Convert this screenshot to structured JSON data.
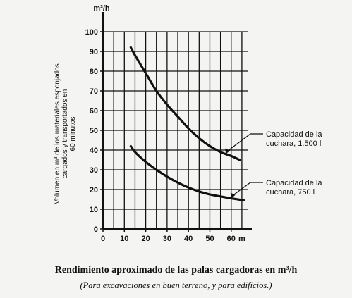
{
  "caption": {
    "title": "Rendimiento aproximado de las palas cargadoras en m³/h",
    "subtitle": "(Para excavaciones en buen terreno, y para edificios.)"
  },
  "chart_data": {
    "type": "line",
    "title": "",
    "xlabel": "m",
    "ylabel": "Volumen en m³ de los materiales esponjados cargados y transportados en 60 minutos",
    "y_unit": "m³/h",
    "x_ticks": [
      "0",
      "10",
      "20",
      "30",
      "40",
      "50",
      "60"
    ],
    "y_ticks": [
      "0",
      "10",
      "20",
      "30",
      "40",
      "50",
      "60",
      "70",
      "80",
      "90",
      "100"
    ],
    "xlim": [
      0,
      68
    ],
    "ylim": [
      0,
      100
    ],
    "grid": true,
    "series": [
      {
        "name": "Capacidad de la cuchara, 1.500 l",
        "label_lines": [
          "Capacidad de la",
          "cuchara, 1.500 l"
        ],
        "x": [
          13,
          15,
          20,
          25,
          30,
          35,
          40,
          45,
          50,
          55,
          60,
          64
        ],
        "y": [
          92,
          88,
          79,
          70,
          63,
          57,
          51,
          46,
          42,
          39,
          37,
          35
        ]
      },
      {
        "name": "Capacidad de la cuchara, 750 l",
        "label_lines": [
          "Capacidad de la",
          "cuchara, 750 l"
        ],
        "x": [
          13,
          15,
          20,
          25,
          30,
          35,
          40,
          45,
          50,
          55,
          60,
          66
        ],
        "y": [
          42,
          39,
          34,
          30,
          26.5,
          23.5,
          21,
          19,
          17.5,
          16.5,
          15.5,
          14.5
        ]
      }
    ]
  }
}
